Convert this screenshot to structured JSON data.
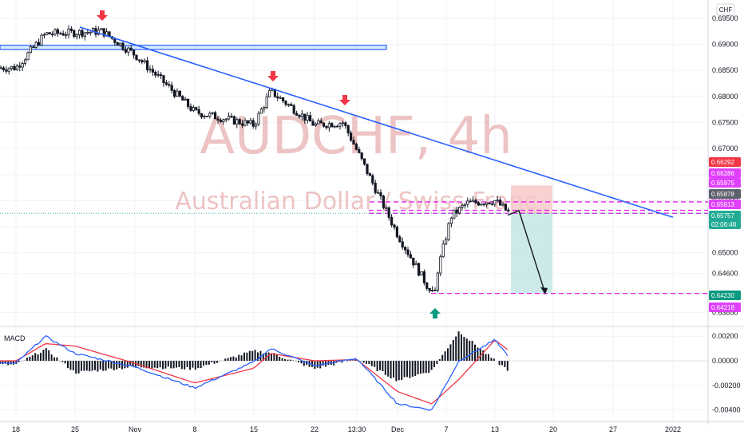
{
  "chart_data": [
    {
      "type": "candlestick",
      "title": "AUDCHF, 4h",
      "subtitle": "Australian Dollar / Swiss Franc",
      "currency": "CHF",
      "ylim": [
        0.636,
        0.6985
      ],
      "y_ticks": [
        "0.69500",
        "0.69000",
        "0.68500",
        "0.68000",
        "0.67500",
        "0.67000",
        "0.66500",
        "0.66000",
        "0.65500",
        "0.65000",
        "0.64600",
        "0.63850"
      ],
      "x_ticks": [
        "18",
        "25",
        "Nov",
        "8",
        "15",
        "22",
        "13:30",
        "Dec",
        "7",
        "13",
        "20",
        "27",
        "2022"
      ],
      "key_points": [
        {
          "x": "18",
          "y": 0.6855
        },
        {
          "x": "22 Oct",
          "y": 0.692
        },
        {
          "x": "27 Oct",
          "y": 0.6925
        },
        {
          "x": "Nov",
          "y": 0.688
        },
        {
          "x": "8",
          "y": 0.677
        },
        {
          "x": "15",
          "y": 0.6745
        },
        {
          "x": "17 Nov",
          "y": 0.681
        },
        {
          "x": "22",
          "y": 0.6745
        },
        {
          "x": "25 Nov",
          "y": 0.675
        },
        {
          "x": "Dec",
          "y": 0.6535
        },
        {
          "x": "6 Dec",
          "y": 0.6421
        },
        {
          "x": "8 Dec",
          "y": 0.657
        },
        {
          "x": "10 Dec",
          "y": 0.6595
        },
        {
          "x": "13",
          "y": 0.66
        },
        {
          "x": "15 Dec",
          "y": 0.6576
        }
      ],
      "price_labels": [
        {
          "value": "0.66292",
          "color": "#f23645"
        },
        {
          "value": "0.66286",
          "color": "#e040fb"
        },
        {
          "value": "0.65975",
          "color": "#e040fb"
        },
        {
          "value": "0.65878",
          "color": "#5d606b"
        },
        {
          "value": "0.65813",
          "color": "#e040fb"
        },
        {
          "value": "0.65757",
          "color": "#22ab94"
        },
        {
          "value": "02:06:48",
          "color": "#22ab94"
        },
        {
          "value": "0.64230",
          "color": "#089981"
        },
        {
          "value": "0.64218",
          "color": "#e040fb"
        }
      ],
      "horizontal_levels": [
        0.65975,
        0.65813,
        0.65757,
        0.64218
      ],
      "resistance_zone": [
        0.689,
        0.6898
      ],
      "trendline": {
        "from": {
          "x": "11 Oct",
          "y": 0.6933
        },
        "to": {
          "x": "2022",
          "y": 0.6568
        }
      },
      "position": {
        "entry": 0.65757,
        "stop": 0.66292,
        "target": 0.6423
      },
      "colors": {
        "up": "#26a69a",
        "down": "#ef5350",
        "candle": "#131722",
        "trend": "#2962ff",
        "level": "#e91ee9",
        "target_zone": "#b2dfdb",
        "stop_zone": "#f8c6c6"
      }
    },
    {
      "type": "line+histogram",
      "title": "MACD",
      "ylim": [
        -0.0048,
        0.0026
      ],
      "y_ticks": [
        "0.00200",
        "0.00000",
        "-0.00200",
        "-0.00400"
      ],
      "series": [
        {
          "name": "MACD",
          "color": "#2962ff"
        },
        {
          "name": "Signal",
          "color": "#f23645"
        },
        {
          "name": "Histogram",
          "color": "#131722"
        }
      ],
      "key_points": [
        {
          "x": "18",
          "macd": -0.0002,
          "signal": 0.0
        },
        {
          "x": "22 Oct",
          "macd": 0.002,
          "signal": 0.0014
        },
        {
          "x": "25",
          "macd": 0.0006,
          "signal": 0.0012
        },
        {
          "x": "Nov",
          "macd": -0.0005,
          "signal": -0.0002
        },
        {
          "x": "8",
          "macd": -0.0022,
          "signal": -0.0018
        },
        {
          "x": "15",
          "macd": -0.0001,
          "signal": -0.0006
        },
        {
          "x": "17 Nov",
          "macd": 0.001,
          "signal": 0.0006
        },
        {
          "x": "22",
          "macd": -0.0004,
          "signal": 0.0
        },
        {
          "x": "13:30",
          "macd": 0.0002,
          "signal": 0.0001
        },
        {
          "x": "Dec",
          "macd": -0.0035,
          "signal": -0.0025
        },
        {
          "x": "6 Dec",
          "macd": -0.004,
          "signal": -0.0035
        },
        {
          "x": "9 Dec",
          "macd": 0.0,
          "signal": -0.0015
        },
        {
          "x": "13",
          "macd": 0.0017,
          "signal": 0.0017
        },
        {
          "x": "15 Dec",
          "macd": 0.0003,
          "signal": 0.0008
        }
      ]
    }
  ]
}
